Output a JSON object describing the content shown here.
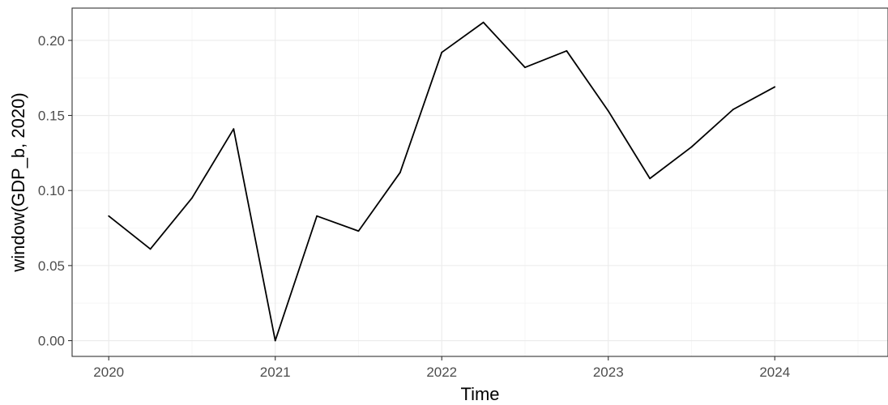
{
  "chart_data": {
    "type": "line",
    "xlabel": "Time",
    "ylabel": "window(GDP_b, 2020)",
    "xlim": [
      2019.78,
      2024.68
    ],
    "ylim": [
      -0.0105,
      0.2215
    ],
    "x_major_ticks": [
      2020,
      2021,
      2022,
      2023,
      2024
    ],
    "x_tick_labels": [
      "2020",
      "2021",
      "2022",
      "2023",
      "2024"
    ],
    "x_minor_ticks": [
      2020.5,
      2021.5,
      2022.5,
      2023.5,
      2024.5
    ],
    "y_major_ticks": [
      0.0,
      0.05,
      0.1,
      0.15,
      0.2
    ],
    "y_tick_labels": [
      "0.00",
      "0.05",
      "0.10",
      "0.15",
      "0.20"
    ],
    "y_minor_ticks": [
      0.025,
      0.075,
      0.125,
      0.175
    ],
    "grid": true,
    "colors": {
      "line": "#000000",
      "grid_major": "#ebebeb",
      "grid_minor": "#f4f4f4",
      "border": "#333333",
      "tick_label": "#4d4d4d"
    },
    "series": [
      {
        "x": [
          2020.0,
          2020.25,
          2020.5,
          2020.75,
          2021.0,
          2021.25,
          2021.5,
          2021.75,
          2022.0,
          2022.25,
          2022.5,
          2022.75,
          2023.0,
          2023.25,
          2023.5,
          2023.75,
          2024.0
        ],
        "values": [
          0.083,
          0.061,
          0.095,
          0.141,
          0.0,
          0.083,
          0.073,
          0.112,
          0.192,
          0.212,
          0.182,
          0.193,
          0.153,
          0.108,
          0.129,
          0.154,
          0.169
        ]
      }
    ]
  }
}
